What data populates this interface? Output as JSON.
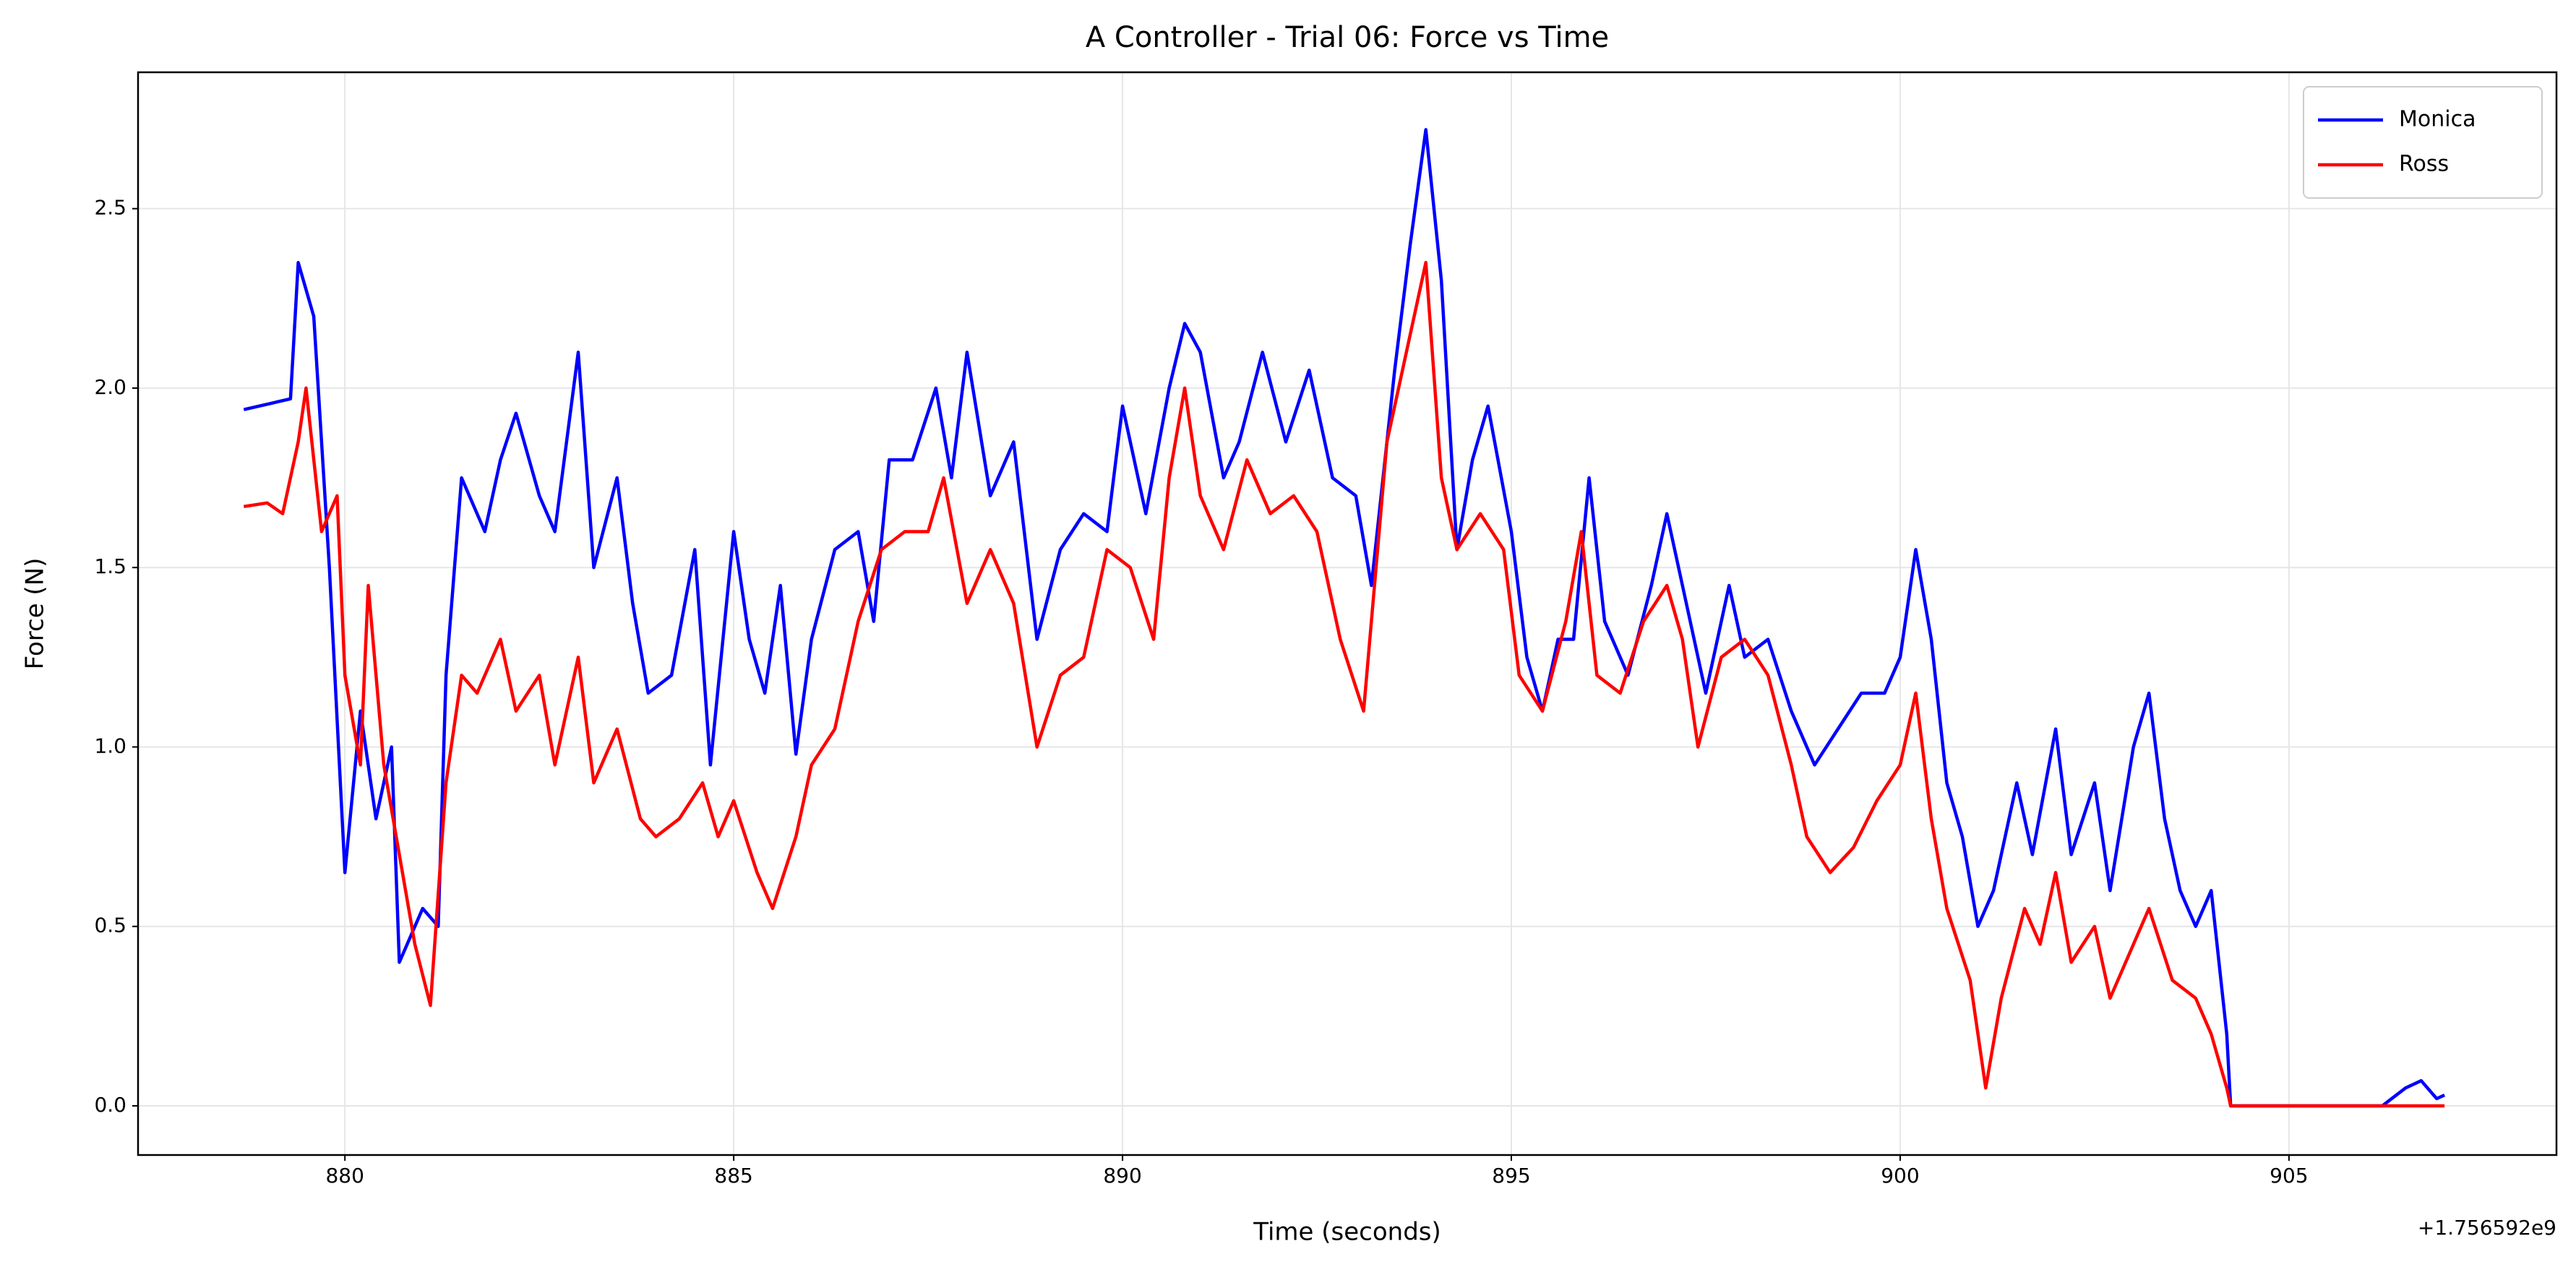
{
  "chart_data": {
    "type": "line",
    "title": "A Controller - Trial 06: Force vs Time",
    "xlabel": "Time (seconds)",
    "ylabel": "Force (N)",
    "x_offset_label": "+1.756592e9",
    "xlim": [
      877.34,
      908.44
    ],
    "ylim": [
      -0.137,
      2.88
    ],
    "xticks": [
      880,
      885,
      890,
      895,
      900,
      905
    ],
    "yticks": [
      {
        "value": 0,
        "label": "0.0"
      },
      0.5,
      {
        "value": 1,
        "label": "1.0"
      },
      1.5,
      {
        "value": 2,
        "label": "2.0"
      },
      2.5
    ],
    "grid": true,
    "legend": "upper right",
    "series": [
      {
        "name": "Monica",
        "color": "#0000ff",
        "x": [
          878.7,
          879.3,
          879.4,
          879.6,
          879.8,
          880.0,
          880.2,
          880.4,
          880.6,
          880.7,
          881.0,
          881.2,
          881.3,
          881.5,
          881.8,
          882.0,
          882.2,
          882.5,
          882.7,
          883.0,
          883.2,
          883.5,
          883.7,
          883.9,
          884.2,
          884.5,
          884.7,
          885.0,
          885.2,
          885.4,
          885.6,
          885.8,
          886.0,
          886.3,
          886.6,
          886.8,
          887.0,
          887.3,
          887.6,
          887.8,
          888.0,
          888.3,
          888.6,
          888.9,
          889.2,
          889.5,
          889.8,
          890.0,
          890.3,
          890.6,
          890.8,
          891.0,
          891.3,
          891.5,
          891.8,
          892.1,
          892.4,
          892.7,
          893.0,
          893.2,
          893.5,
          893.7,
          893.9,
          894.1,
          894.3,
          894.5,
          894.7,
          895.0,
          895.2,
          895.4,
          895.6,
          895.8,
          896.0,
          896.2,
          896.5,
          896.8,
          897.0,
          897.3,
          897.5,
          897.8,
          898.0,
          898.3,
          898.6,
          898.9,
          899.2,
          899.5,
          899.8,
          900.0,
          900.2,
          900.4,
          900.6,
          900.8,
          901.0,
          901.2,
          901.5,
          901.7,
          902.0,
          902.2,
          902.5,
          902.7,
          903.0,
          903.2,
          903.4,
          903.6,
          903.8,
          904.0,
          904.2,
          904.25,
          906.2,
          906.5,
          906.7,
          906.9,
          907.0
        ],
        "values": [
          1.94,
          1.97,
          2.35,
          2.2,
          1.5,
          0.65,
          1.1,
          0.8,
          1.0,
          0.4,
          0.55,
          0.5,
          1.2,
          1.75,
          1.6,
          1.8,
          1.93,
          1.7,
          1.6,
          2.1,
          1.5,
          1.75,
          1.4,
          1.15,
          1.2,
          1.55,
          0.95,
          1.6,
          1.3,
          1.15,
          1.45,
          0.98,
          1.3,
          1.55,
          1.6,
          1.35,
          1.8,
          1.8,
          2.0,
          1.75,
          2.1,
          1.7,
          1.85,
          1.3,
          1.55,
          1.65,
          1.6,
          1.95,
          1.65,
          2.0,
          2.18,
          2.1,
          1.75,
          1.85,
          2.1,
          1.85,
          2.05,
          1.75,
          1.7,
          1.45,
          2.05,
          2.4,
          2.72,
          2.3,
          1.55,
          1.8,
          1.95,
          1.6,
          1.25,
          1.1,
          1.3,
          1.3,
          1.75,
          1.35,
          1.2,
          1.45,
          1.65,
          1.35,
          1.15,
          1.45,
          1.25,
          1.3,
          1.1,
          0.95,
          1.05,
          1.15,
          1.15,
          1.25,
          1.55,
          1.3,
          0.9,
          0.75,
          0.5,
          0.6,
          0.9,
          0.7,
          1.05,
          0.7,
          0.9,
          0.6,
          1.0,
          1.15,
          0.8,
          0.6,
          0.5,
          0.6,
          0.2,
          0,
          0,
          0.05,
          0.07,
          0.02,
          0.03
        ]
      },
      {
        "name": "Ross",
        "color": "#ff0000",
        "x": [
          878.7,
          879.0,
          879.2,
          879.4,
          879.5,
          879.7,
          879.9,
          880.0,
          880.2,
          880.3,
          880.5,
          880.7,
          880.9,
          881.1,
          881.3,
          881.5,
          881.7,
          882.0,
          882.2,
          882.5,
          882.7,
          883.0,
          883.2,
          883.5,
          883.8,
          884.0,
          884.3,
          884.6,
          884.8,
          885.0,
          885.3,
          885.5,
          885.8,
          886.0,
          886.3,
          886.6,
          886.9,
          887.2,
          887.5,
          887.7,
          888.0,
          888.3,
          888.6,
          888.9,
          889.2,
          889.5,
          889.8,
          890.1,
          890.4,
          890.6,
          890.8,
          891.0,
          891.3,
          891.6,
          891.9,
          892.2,
          892.5,
          892.8,
          893.1,
          893.4,
          893.6,
          893.9,
          894.1,
          894.3,
          894.6,
          894.9,
          895.1,
          895.4,
          895.7,
          895.9,
          896.1,
          896.4,
          896.7,
          897.0,
          897.2,
          897.4,
          897.7,
          898.0,
          898.3,
          898.6,
          898.8,
          899.1,
          899.4,
          899.7,
          900.0,
          900.2,
          900.4,
          900.6,
          900.9,
          901.1,
          901.3,
          901.6,
          901.8,
          902.0,
          902.2,
          902.5,
          902.7,
          903.0,
          903.2,
          903.5,
          903.8,
          904.0,
          904.2,
          904.25,
          907.0
        ],
        "values": [
          1.67,
          1.68,
          1.65,
          1.85,
          2.0,
          1.6,
          1.7,
          1.2,
          0.95,
          1.45,
          0.95,
          0.7,
          0.45,
          0.28,
          0.9,
          1.2,
          1.15,
          1.3,
          1.1,
          1.2,
          0.95,
          1.25,
          0.9,
          1.05,
          0.8,
          0.75,
          0.8,
          0.9,
          0.75,
          0.85,
          0.65,
          0.55,
          0.75,
          0.95,
          1.05,
          1.35,
          1.55,
          1.6,
          1.6,
          1.75,
          1.4,
          1.55,
          1.4,
          1.0,
          1.2,
          1.25,
          1.55,
          1.5,
          1.3,
          1.75,
          2.0,
          1.7,
          1.55,
          1.8,
          1.65,
          1.7,
          1.6,
          1.3,
          1.1,
          1.85,
          2.05,
          2.35,
          1.75,
          1.55,
          1.65,
          1.55,
          1.2,
          1.1,
          1.35,
          1.6,
          1.2,
          1.15,
          1.35,
          1.45,
          1.3,
          1.0,
          1.25,
          1.3,
          1.2,
          0.95,
          0.75,
          0.65,
          0.72,
          0.85,
          0.95,
          1.15,
          0.8,
          0.55,
          0.35,
          0.05,
          0.3,
          0.55,
          0.45,
          0.65,
          0.4,
          0.5,
          0.3,
          0.45,
          0.55,
          0.35,
          0.3,
          0.2,
          0.05,
          0,
          0
        ]
      }
    ]
  }
}
